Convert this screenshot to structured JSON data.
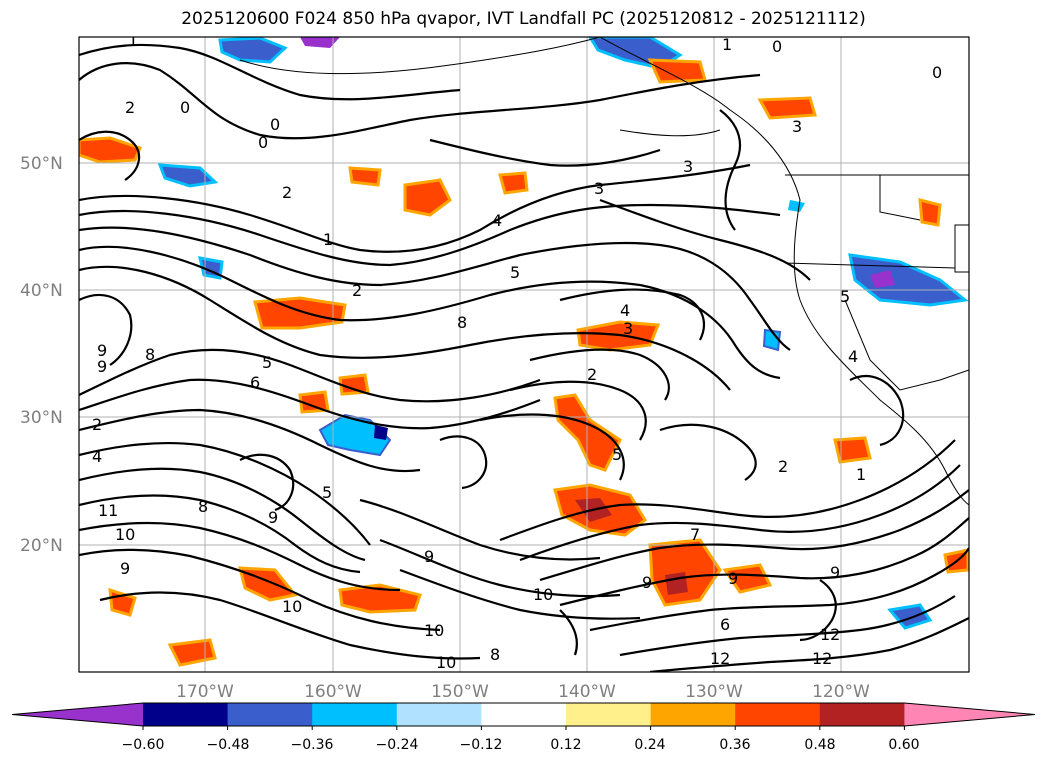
{
  "title": "2025120600 F024 850 hPa qvapor, IVT Landfall PC (2025120812 - 2025121112)",
  "lon_ticks": [
    "170°W",
    "160°W",
    "150°W",
    "140°W",
    "130°W",
    "120°W"
  ],
  "lat_ticks": [
    "50°N",
    "40°N",
    "30°N",
    "20°N"
  ],
  "colorbar": {
    "colors": [
      "#9932cc",
      "#00008b",
      "#3a5fcd",
      "#00bfff",
      "#b0e2ff",
      "#ffffff",
      "#fff08c",
      "#ffa500",
      "#ff4500",
      "#b22222",
      "#ff86b4"
    ],
    "tick_labels": [
      "−0.60",
      "−0.48",
      "−0.36",
      "−0.24",
      "−0.12",
      "0.12",
      "0.24",
      "0.36",
      "0.48",
      "0.60"
    ]
  },
  "contour_labels": [
    "1",
    "0",
    "2",
    "0",
    "0",
    "0",
    "1",
    "0",
    "3",
    "3",
    "2",
    "4",
    "1",
    "2",
    "5",
    "8",
    "4",
    "3",
    "2",
    "9",
    "8",
    "6",
    "5",
    "9",
    "2",
    "4",
    "11",
    "10",
    "9",
    "8",
    "9",
    "10",
    "9",
    "5",
    "5",
    "2",
    "1",
    "7",
    "9",
    "9",
    "9",
    "10",
    "10",
    "8",
    "12",
    "12",
    "6",
    "10",
    "12",
    "3",
    "4",
    "5"
  ]
}
